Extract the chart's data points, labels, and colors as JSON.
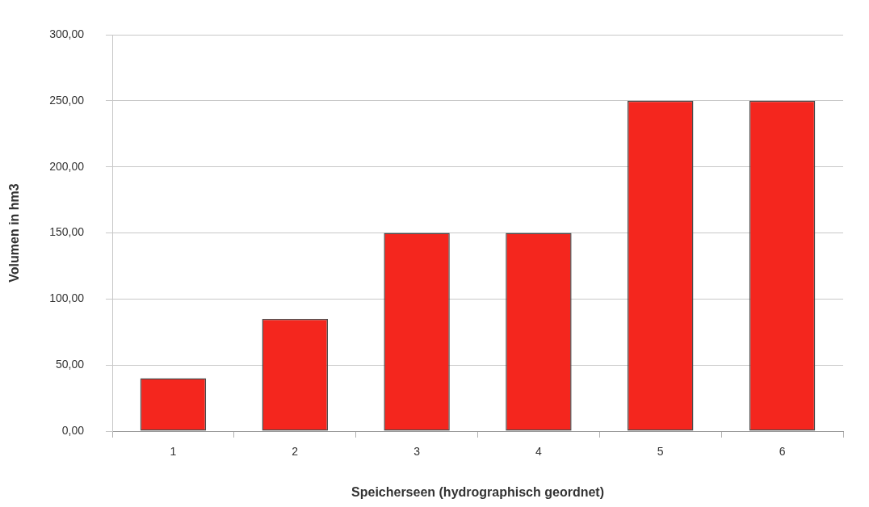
{
  "chart_data": {
    "type": "bar",
    "xlabel": "Speicherseen (hydrographisch geordnet)",
    "ylabel": "Volumen in hm3",
    "categories": [
      "1",
      "2",
      "3",
      "4",
      "5",
      "6"
    ],
    "values": [
      40,
      85,
      150,
      150,
      250,
      250
    ],
    "color": "#f4261e",
    "ylim": [
      0,
      300
    ],
    "yticks": [
      {
        "value": 0,
        "label": "0,00"
      },
      {
        "value": 50,
        "label": "50,00"
      },
      {
        "value": 100,
        "label": "100,00"
      },
      {
        "value": 150,
        "label": "150,00"
      },
      {
        "value": 200,
        "label": "200,00"
      },
      {
        "value": 250,
        "label": "250,00"
      },
      {
        "value": 300,
        "label": "300,00"
      }
    ],
    "grid": "y"
  }
}
